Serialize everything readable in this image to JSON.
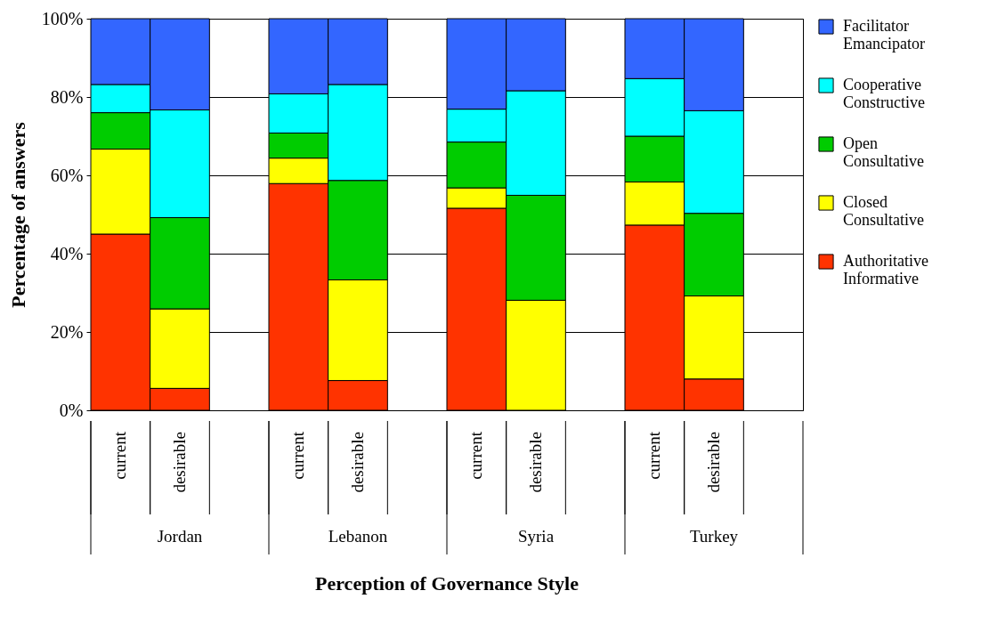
{
  "chart_data": {
    "type": "bar",
    "stacked": true,
    "xlabel": "Perception of Governance Style",
    "ylabel": "Percentage of answers",
    "categories": [
      "current",
      "desirable",
      null,
      "current",
      "desirable",
      null,
      "current",
      "desirable",
      null,
      "current",
      "desirable",
      null
    ],
    "annotations": [
      "Jordan",
      "Lebanon",
      "Syria",
      "Turkey"
    ],
    "series": [
      {
        "name": "Authoritative Informative",
        "color": "#ff3300",
        "values": [
          45.0,
          5.6,
          null,
          57.9,
          7.6,
          null,
          51.6,
          0,
          null,
          47.3,
          8.0,
          null
        ]
      },
      {
        "name": "Closed Consultative",
        "color": "#ffff00",
        "values": [
          21.7,
          20.3,
          null,
          6.5,
          25.7,
          null,
          5.2,
          28.1,
          null,
          11.0,
          21.2,
          null
        ]
      },
      {
        "name": "Open Consultative",
        "color": "#00cc00",
        "values": [
          9.3,
          23.3,
          null,
          6.4,
          25.4,
          null,
          11.7,
          26.8,
          null,
          11.7,
          21.1,
          null
        ]
      },
      {
        "name": "Cooperative Constructive",
        "color": "#00ffff",
        "values": [
          7.2,
          27.5,
          null,
          10.0,
          24.5,
          null,
          8.4,
          26.7,
          null,
          14.7,
          26.2,
          null
        ]
      },
      {
        "name": "Facilitator Emancipator",
        "color": "#3366ff",
        "values": [
          16.8,
          23.3,
          null,
          19.2,
          16.8,
          null,
          23.1,
          18.4,
          null,
          15.3,
          23.5,
          null
        ]
      }
    ],
    "ylim": [
      0,
      100
    ],
    "yticks": [
      {
        "value": 0,
        "label": "0%"
      },
      {
        "value": 20,
        "label": "20%"
      },
      {
        "value": 40,
        "label": "40%"
      },
      {
        "value": 60,
        "label": "60%"
      },
      {
        "value": 80,
        "label": "80%"
      },
      {
        "value": 100,
        "label": "100%"
      }
    ],
    "grid": "y",
    "legend": "right"
  }
}
